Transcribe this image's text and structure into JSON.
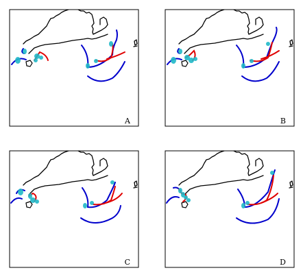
{
  "figure": {
    "colors": {
      "coast": "#000000",
      "blue": "#0000cc",
      "red": "#e00000",
      "cyan": "#20b8c8"
    }
  },
  "chart_data": {
    "type": "map-trajectories",
    "panels": [
      {
        "label": "A",
        "variant": 0
      },
      {
        "label": "B",
        "variant": 1
      },
      {
        "label": "C",
        "variant": 2
      },
      {
        "label": "D",
        "variant": 3
      }
    ]
  }
}
